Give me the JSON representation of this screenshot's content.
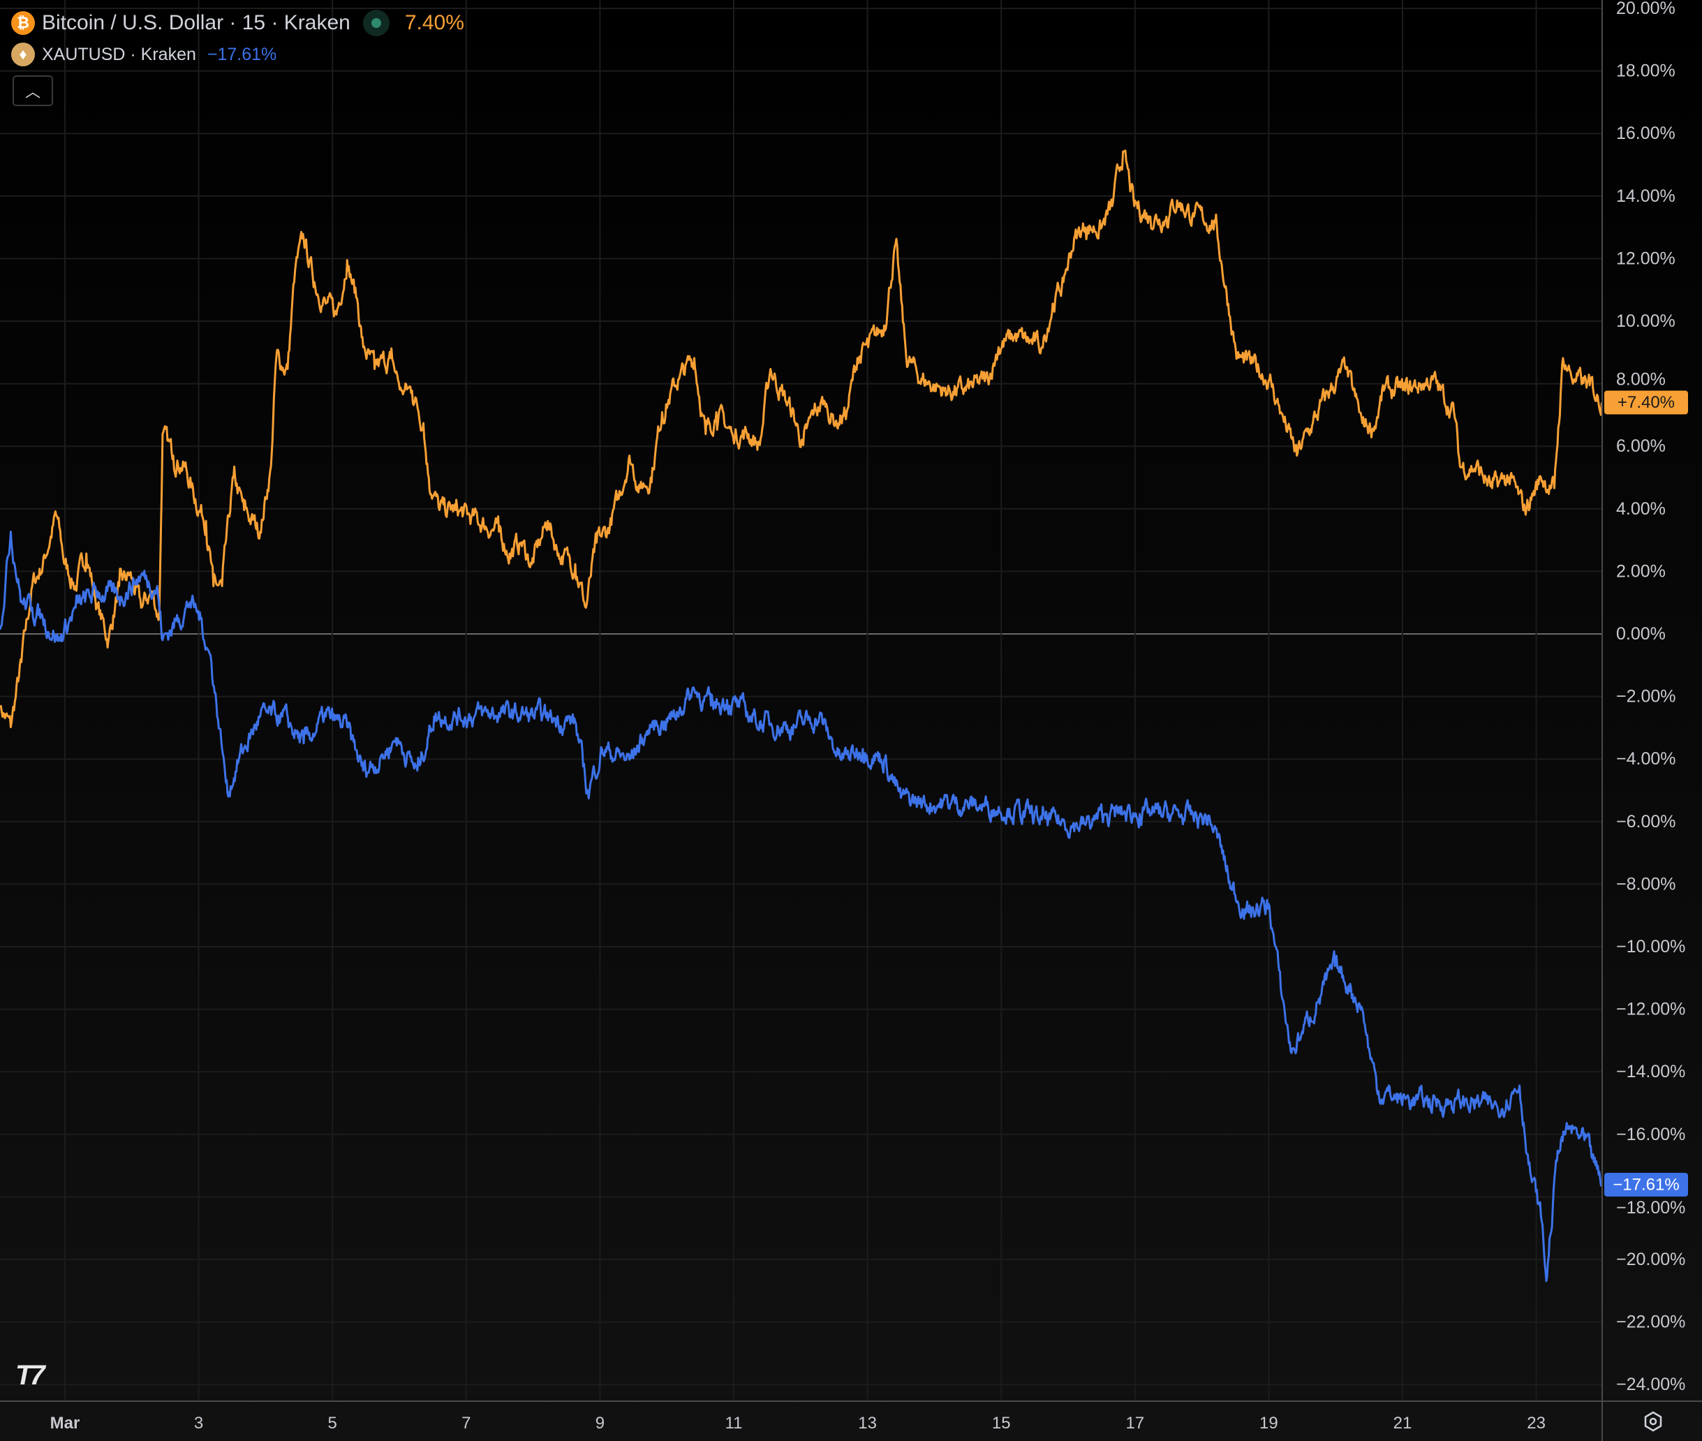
{
  "legend": {
    "main": {
      "symbol": "bitcoin-icon",
      "title": "Bitcoin / U.S. Dollar · 15 · Kraken",
      "change": "7.40%",
      "color": "#f7a035"
    },
    "compare": {
      "symbol": "tether-gold-icon",
      "title": "XAUTUSD · Kraken",
      "change": "−17.61%",
      "color": "#3d72e8"
    },
    "collapse_icon": "chevron-up-icon"
  },
  "footer": {
    "logo": "TV",
    "settings_icon": "gear-icon"
  },
  "chart_data": {
    "type": "line",
    "xlabel": "",
    "ylabel": "",
    "x_unit": "day of March",
    "x_ticks": [
      {
        "day": 1,
        "label": "Mar"
      },
      {
        "day": 3,
        "label": "3"
      },
      {
        "day": 5,
        "label": "5"
      },
      {
        "day": 7,
        "label": "7"
      },
      {
        "day": 9,
        "label": "9"
      },
      {
        "day": 11,
        "label": "11"
      },
      {
        "day": 13,
        "label": "13"
      },
      {
        "day": 15,
        "label": "15"
      },
      {
        "day": 17,
        "label": "17"
      },
      {
        "day": 19,
        "label": "19"
      },
      {
        "day": 21,
        "label": "21"
      },
      {
        "day": 23,
        "label": "23"
      }
    ],
    "y_ticks": [
      20,
      18,
      16,
      14,
      12,
      10,
      8,
      6,
      4,
      2,
      0,
      -2,
      -4,
      -6,
      -8,
      -10,
      -12,
      -14,
      -16,
      -18,
      -20,
      -22,
      -24
    ],
    "y_tick_labels": [
      "20.00%",
      "18.00%",
      "16.00%",
      "14.00%",
      "12.00%",
      "10.00%",
      "8.00%",
      "6.00%",
      "4.00%",
      "2.00%",
      "0.00%",
      "−2.00%",
      "−4.00%",
      "−6.00%",
      "−8.00%",
      "−10.00%",
      "−12.00%",
      "−14.00%",
      "−16.00%",
      "−18.00%",
      "−20.00%",
      "−22.00%",
      "−24.00%"
    ],
    "ylim": [
      -24,
      20
    ],
    "xlim": [
      0.03,
      23.98
    ],
    "grid": true,
    "zero_line": true,
    "series": [
      {
        "name": "Bitcoin / U.S. Dollar",
        "color": "#f7a035",
        "last_label": "+7.40%",
        "points": [
          [
            0.03,
            -2.29
          ],
          [
            0.19,
            -2.98
          ],
          [
            0.35,
            -0.9
          ],
          [
            0.51,
            1.53
          ],
          [
            0.67,
            2.23
          ],
          [
            0.87,
            3.79
          ],
          [
            1.0,
            2.23
          ],
          [
            1.16,
            1.53
          ],
          [
            1.32,
            2.57
          ],
          [
            1.49,
            0.84
          ],
          [
            1.65,
            -0.2
          ],
          [
            1.81,
            1.53
          ],
          [
            1.97,
            1.88
          ],
          [
            2.14,
            0.84
          ],
          [
            2.3,
            1.36
          ],
          [
            2.41,
            0.49
          ],
          [
            2.46,
            6.39
          ],
          [
            2.62,
            5.7
          ],
          [
            2.79,
            5.35
          ],
          [
            2.95,
            4.31
          ],
          [
            3.11,
            3.61
          ],
          [
            3.22,
            1.53
          ],
          [
            3.35,
            1.53
          ],
          [
            3.52,
            5.0
          ],
          [
            3.68,
            3.96
          ],
          [
            3.92,
            3.27
          ],
          [
            4.08,
            5.35
          ],
          [
            4.16,
            8.82
          ],
          [
            4.33,
            8.47
          ],
          [
            4.44,
            11.6
          ],
          [
            4.57,
            12.64
          ],
          [
            4.73,
            11.25
          ],
          [
            4.9,
            10.56
          ],
          [
            5.06,
            10.21
          ],
          [
            5.22,
            11.95
          ],
          [
            5.38,
            10.56
          ],
          [
            5.46,
            9.17
          ],
          [
            5.63,
            8.47
          ],
          [
            5.87,
            8.82
          ],
          [
            6.03,
            7.78
          ],
          [
            6.19,
            7.78
          ],
          [
            6.36,
            6.74
          ],
          [
            6.44,
            5.0
          ],
          [
            6.6,
            3.96
          ],
          [
            6.84,
            3.96
          ],
          [
            7.17,
            3.61
          ],
          [
            7.49,
            3.27
          ],
          [
            7.65,
            2.57
          ],
          [
            7.82,
            2.92
          ],
          [
            7.98,
            2.23
          ],
          [
            8.22,
            3.61
          ],
          [
            8.38,
            2.57
          ],
          [
            8.63,
            2.23
          ],
          [
            8.79,
            0.84
          ],
          [
            8.95,
            2.92
          ],
          [
            9.11,
            3.27
          ],
          [
            9.28,
            4.31
          ],
          [
            9.44,
            5.7
          ],
          [
            9.6,
            4.66
          ],
          [
            9.76,
            5.0
          ],
          [
            9.93,
            7.09
          ],
          [
            10.17,
            8.13
          ],
          [
            10.41,
            8.82
          ],
          [
            10.58,
            6.39
          ],
          [
            10.74,
            7.09
          ],
          [
            10.98,
            6.39
          ],
          [
            11.22,
            6.39
          ],
          [
            11.39,
            6.04
          ],
          [
            11.55,
            8.47
          ],
          [
            11.71,
            7.78
          ],
          [
            11.87,
            7.09
          ],
          [
            12.04,
            6.04
          ],
          [
            12.2,
            7.09
          ],
          [
            12.36,
            7.43
          ],
          [
            12.52,
            6.74
          ],
          [
            12.69,
            7.09
          ],
          [
            12.85,
            8.82
          ],
          [
            13.01,
            9.17
          ],
          [
            13.25,
            9.86
          ],
          [
            13.42,
            12.47
          ],
          [
            13.58,
            8.82
          ],
          [
            13.82,
            8.13
          ],
          [
            14.15,
            7.78
          ],
          [
            14.47,
            7.78
          ],
          [
            14.8,
            8.13
          ],
          [
            14.96,
            9.17
          ],
          [
            15.2,
            9.52
          ],
          [
            15.61,
            9.17
          ],
          [
            15.77,
            10.56
          ],
          [
            15.93,
            11.25
          ],
          [
            16.09,
            12.64
          ],
          [
            16.26,
            12.99
          ],
          [
            16.5,
            12.99
          ],
          [
            16.66,
            13.68
          ],
          [
            16.82,
            15.42
          ],
          [
            16.99,
            13.68
          ],
          [
            17.23,
            13.34
          ],
          [
            17.47,
            13.34
          ],
          [
            17.63,
            13.86
          ],
          [
            17.88,
            13.34
          ],
          [
            18.2,
            13.16
          ],
          [
            18.37,
            10.91
          ],
          [
            18.53,
            8.82
          ],
          [
            18.85,
            8.47
          ],
          [
            19.01,
            8.13
          ],
          [
            19.18,
            7.09
          ],
          [
            19.42,
            5.7
          ],
          [
            19.66,
            6.74
          ],
          [
            19.91,
            7.78
          ],
          [
            20.15,
            8.47
          ],
          [
            20.4,
            6.74
          ],
          [
            20.56,
            6.57
          ],
          [
            20.72,
            7.78
          ],
          [
            21.04,
            7.78
          ],
          [
            21.45,
            8.13
          ],
          [
            21.77,
            7.09
          ],
          [
            21.86,
            5.35
          ],
          [
            22.1,
            5.35
          ],
          [
            22.34,
            4.66
          ],
          [
            22.59,
            5.0
          ],
          [
            22.83,
            3.96
          ],
          [
            23.07,
            5.0
          ],
          [
            23.27,
            4.66
          ],
          [
            23.4,
            8.82
          ],
          [
            23.56,
            8.13
          ],
          [
            23.8,
            7.95
          ],
          [
            23.98,
            7.4
          ]
        ]
      },
      {
        "name": "XAUTUSD",
        "color": "#3d72e8",
        "last_label": "−17.61%",
        "points": [
          [
            0.03,
            0.14
          ],
          [
            0.19,
            3.27
          ],
          [
            0.35,
            1.01
          ],
          [
            0.51,
            0.84
          ],
          [
            0.67,
            0.49
          ],
          [
            0.92,
            -0.2
          ],
          [
            1.16,
            0.84
          ],
          [
            1.49,
            1.36
          ],
          [
            1.81,
            1.18
          ],
          [
            2.14,
            1.88
          ],
          [
            2.38,
            1.53
          ],
          [
            2.46,
            -0.2
          ],
          [
            2.7,
            0.49
          ],
          [
            2.87,
            1.01
          ],
          [
            3.03,
            0.49
          ],
          [
            3.19,
            -0.9
          ],
          [
            3.35,
            -3.68
          ],
          [
            3.43,
            -5.07
          ],
          [
            3.6,
            -4.02
          ],
          [
            3.92,
            -2.64
          ],
          [
            4.25,
            -2.64
          ],
          [
            4.57,
            -3.5
          ],
          [
            4.9,
            -2.64
          ],
          [
            5.22,
            -2.98
          ],
          [
            5.46,
            -4.37
          ],
          [
            5.71,
            -4.02
          ],
          [
            5.95,
            -3.33
          ],
          [
            6.27,
            -4.37
          ],
          [
            6.52,
            -2.64
          ],
          [
            6.84,
            -2.64
          ],
          [
            7.49,
            -2.53
          ],
          [
            8.14,
            -2.64
          ],
          [
            8.63,
            -2.81
          ],
          [
            8.82,
            -5.07
          ],
          [
            9.03,
            -3.68
          ],
          [
            9.44,
            -4.02
          ],
          [
            9.76,
            -2.98
          ],
          [
            10.09,
            -2.64
          ],
          [
            10.41,
            -1.77
          ],
          [
            10.66,
            -2.29
          ],
          [
            10.9,
            -2.11
          ],
          [
            11.39,
            -2.81
          ],
          [
            11.87,
            -2.98
          ],
          [
            12.28,
            -2.64
          ],
          [
            12.6,
            -4.02
          ],
          [
            12.93,
            -3.68
          ],
          [
            13.25,
            -4.02
          ],
          [
            13.5,
            -5.24
          ],
          [
            13.82,
            -5.41
          ],
          [
            14.31,
            -5.41
          ],
          [
            15.12,
            -5.59
          ],
          [
            15.61,
            -5.93
          ],
          [
            16.26,
            -6.11
          ],
          [
            16.58,
            -5.76
          ],
          [
            17.07,
            -5.76
          ],
          [
            17.55,
            -5.76
          ],
          [
            18.12,
            -5.93
          ],
          [
            18.28,
            -6.8
          ],
          [
            18.45,
            -8.19
          ],
          [
            18.69,
            -8.88
          ],
          [
            19.01,
            -8.71
          ],
          [
            19.18,
            -11.32
          ],
          [
            19.34,
            -13.4
          ],
          [
            19.5,
            -12.71
          ],
          [
            19.75,
            -11.66
          ],
          [
            19.99,
            -10.62
          ],
          [
            20.23,
            -11.32
          ],
          [
            20.4,
            -12.01
          ],
          [
            20.51,
            -13.4
          ],
          [
            20.64,
            -14.62
          ],
          [
            20.96,
            -14.86
          ],
          [
            21.45,
            -14.96
          ],
          [
            22.1,
            -14.99
          ],
          [
            22.42,
            -15.13
          ],
          [
            22.75,
            -14.44
          ],
          [
            22.91,
            -17.22
          ],
          [
            23.07,
            -18.61
          ],
          [
            23.15,
            -20.69
          ],
          [
            23.32,
            -16.52
          ],
          [
            23.48,
            -15.83
          ],
          [
            23.72,
            -16.18
          ],
          [
            23.98,
            -17.61
          ]
        ]
      }
    ]
  }
}
